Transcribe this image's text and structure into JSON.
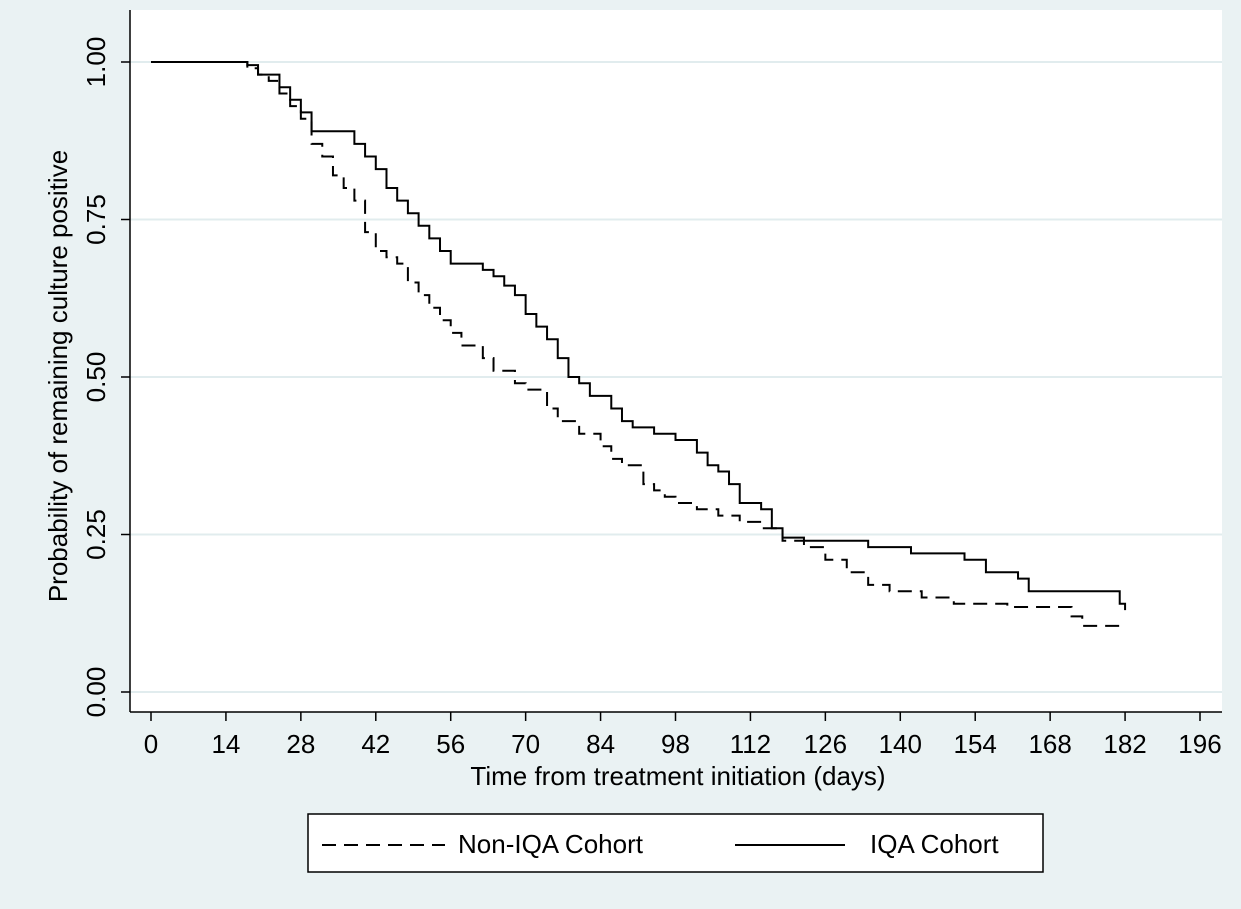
{
  "chart_data": {
    "type": "step",
    "xlabel": "Time from treatment initiation (days)",
    "ylabel": "Probability of remaining culture positive",
    "xlim": [
      0,
      196
    ],
    "ylim": [
      0,
      1
    ],
    "xticks": [
      0,
      14,
      28,
      42,
      56,
      70,
      84,
      98,
      112,
      126,
      140,
      154,
      168,
      182,
      196
    ],
    "yticks": [
      {
        "value": 0,
        "label": "0.00"
      },
      {
        "value": 0.25,
        "label": "0.25"
      },
      {
        "value": 0.5,
        "label": "0.50"
      },
      {
        "value": 0.75,
        "label": "0.75"
      },
      {
        "value": 1,
        "label": "1.00"
      }
    ],
    "grid": true,
    "legend": "bottom",
    "series": [
      {
        "name": "Non-IQA Cohort",
        "color": "#000000",
        "style": "dashed",
        "x": [
          0,
          18,
          20,
          22,
          24,
          26,
          28,
          30,
          32,
          34,
          36,
          38,
          40,
          42,
          44,
          46,
          48,
          50,
          52,
          54,
          56,
          58,
          62,
          64,
          68,
          70,
          74,
          76,
          80,
          84,
          86,
          88,
          92,
          94,
          96,
          98,
          102,
          106,
          110,
          114,
          118,
          122,
          126,
          130,
          134,
          138,
          144,
          150,
          160,
          172,
          174,
          182
        ],
        "values": [
          1.0,
          0.99,
          0.98,
          0.97,
          0.95,
          0.93,
          0.91,
          0.87,
          0.85,
          0.82,
          0.8,
          0.78,
          0.73,
          0.7,
          0.69,
          0.68,
          0.65,
          0.63,
          0.61,
          0.59,
          0.57,
          0.55,
          0.53,
          0.51,
          0.49,
          0.48,
          0.45,
          0.43,
          0.41,
          0.39,
          0.37,
          0.36,
          0.33,
          0.32,
          0.31,
          0.3,
          0.29,
          0.28,
          0.27,
          0.26,
          0.24,
          0.23,
          0.21,
          0.19,
          0.17,
          0.16,
          0.15,
          0.14,
          0.135,
          0.12,
          0.105,
          0.105
        ]
      },
      {
        "name": "IQA Cohort",
        "color": "#000000",
        "style": "solid",
        "x": [
          0,
          18,
          20,
          24,
          26,
          28,
          30,
          38,
          40,
          42,
          44,
          46,
          48,
          50,
          52,
          54,
          56,
          62,
          64,
          66,
          68,
          70,
          72,
          74,
          76,
          78,
          80,
          82,
          86,
          88,
          90,
          94,
          98,
          102,
          104,
          106,
          108,
          110,
          114,
          116,
          118,
          122,
          134,
          142,
          152,
          156,
          162,
          164,
          180,
          181,
          182
        ],
        "values": [
          1.0,
          0.995,
          0.98,
          0.96,
          0.94,
          0.92,
          0.89,
          0.87,
          0.85,
          0.83,
          0.8,
          0.78,
          0.76,
          0.74,
          0.72,
          0.7,
          0.68,
          0.67,
          0.66,
          0.645,
          0.63,
          0.6,
          0.58,
          0.56,
          0.53,
          0.5,
          0.49,
          0.47,
          0.45,
          0.43,
          0.42,
          0.41,
          0.4,
          0.38,
          0.36,
          0.35,
          0.33,
          0.3,
          0.29,
          0.26,
          0.245,
          0.24,
          0.23,
          0.22,
          0.21,
          0.19,
          0.18,
          0.16,
          0.16,
          0.14,
          0.13
        ]
      }
    ]
  }
}
